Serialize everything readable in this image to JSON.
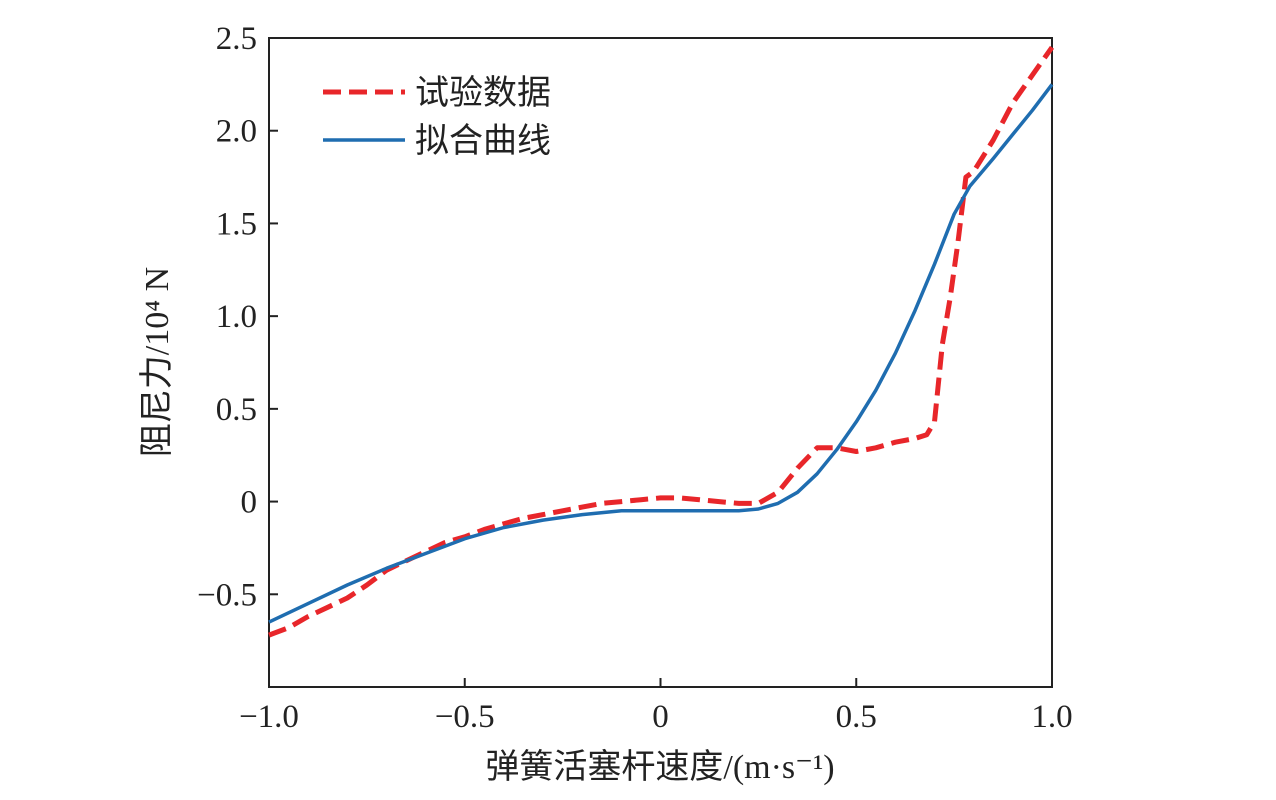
{
  "chart_data": {
    "type": "line",
    "title": "",
    "xlabel": "弹簧活塞杆速度/(m·s⁻¹)",
    "ylabel": "阻尼力/10⁴ N",
    "xlim": [
      -1.0,
      1.0
    ],
    "ylim": [
      -1.0,
      2.5
    ],
    "x_ticks": [
      -1.0,
      -0.5,
      0,
      0.5,
      1.0
    ],
    "x_tick_labels": [
      "−1.0",
      "−0.5",
      "0",
      "0.5",
      "1.0"
    ],
    "y_ticks": [
      -0.5,
      0,
      0.5,
      1.0,
      1.5,
      2.0,
      2.5
    ],
    "y_tick_labels": [
      "−0.5",
      "0",
      "0.5",
      "1.0",
      "1.5",
      "2.0",
      "2.5"
    ],
    "grid": false,
    "legend_position": "top-left",
    "series": [
      {
        "name": "试验数据",
        "style": "dashed",
        "color": "#e8262a",
        "x": [
          -1.0,
          -0.95,
          -0.9,
          -0.85,
          -0.8,
          -0.75,
          -0.7,
          -0.65,
          -0.6,
          -0.55,
          -0.5,
          -0.45,
          -0.4,
          -0.35,
          -0.3,
          -0.25,
          -0.2,
          -0.15,
          -0.1,
          -0.05,
          0.0,
          0.05,
          0.1,
          0.15,
          0.2,
          0.25,
          0.3,
          0.35,
          0.4,
          0.45,
          0.5,
          0.55,
          0.6,
          0.65,
          0.68,
          0.7,
          0.72,
          0.74,
          0.76,
          0.78,
          0.8,
          0.85,
          0.9,
          0.95,
          1.0
        ],
        "y": [
          -0.72,
          -0.68,
          -0.62,
          -0.57,
          -0.52,
          -0.45,
          -0.37,
          -0.32,
          -0.27,
          -0.22,
          -0.19,
          -0.15,
          -0.12,
          -0.09,
          -0.07,
          -0.05,
          -0.03,
          -0.01,
          0.0,
          0.01,
          0.02,
          0.02,
          0.01,
          0.0,
          -0.01,
          -0.01,
          0.05,
          0.18,
          0.29,
          0.29,
          0.27,
          0.29,
          0.32,
          0.34,
          0.36,
          0.43,
          0.85,
          1.1,
          1.4,
          1.75,
          1.78,
          1.95,
          2.15,
          2.3,
          2.45
        ]
      },
      {
        "name": "拟合曲线",
        "style": "solid",
        "color": "#1f6db0",
        "x": [
          -1.0,
          -0.9,
          -0.8,
          -0.7,
          -0.6,
          -0.5,
          -0.4,
          -0.3,
          -0.2,
          -0.1,
          0.0,
          0.1,
          0.2,
          0.25,
          0.3,
          0.35,
          0.4,
          0.45,
          0.5,
          0.55,
          0.6,
          0.65,
          0.7,
          0.75,
          0.79,
          0.85,
          0.9,
          0.95,
          1.0
        ],
        "y": [
          -0.65,
          -0.55,
          -0.45,
          -0.36,
          -0.28,
          -0.2,
          -0.14,
          -0.1,
          -0.07,
          -0.05,
          -0.05,
          -0.05,
          -0.05,
          -0.04,
          -0.01,
          0.05,
          0.15,
          0.28,
          0.43,
          0.6,
          0.8,
          1.03,
          1.28,
          1.55,
          1.7,
          1.85,
          1.98,
          2.11,
          2.25
        ]
      }
    ]
  }
}
